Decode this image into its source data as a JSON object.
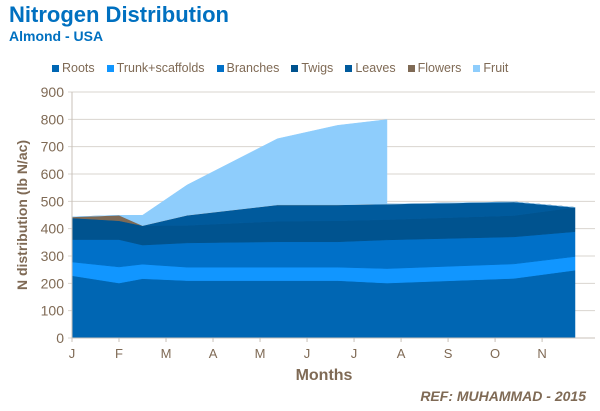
{
  "chart_data": {
    "type": "area",
    "stacked": true,
    "title": "Nitrogen Distribution",
    "subtitle": "Almond - USA",
    "xlabel": "Months",
    "ylabel": "N distribution (lb N/ac)",
    "ylim": [
      0,
      900
    ],
    "yticks": [
      0,
      100,
      200,
      300,
      400,
      500,
      600,
      700,
      800,
      900
    ],
    "xticks": [
      "J",
      "F",
      "M",
      "A",
      "M",
      "J",
      "J",
      "A",
      "S",
      "O",
      "N"
    ],
    "xlim": [
      0,
      10.7
    ],
    "grid": true,
    "legend": "top",
    "x": [
      0,
      1,
      1.5,
      2.45,
      4.37,
      5.65,
      6.7,
      6.7,
      9.4,
      10.7
    ],
    "series": [
      {
        "name": "Roots",
        "color": "#0066b3",
        "values": [
          228,
          201,
          217,
          210,
          210,
          210,
          201,
          201,
          218,
          248
        ]
      },
      {
        "name": "Trunk+scaffolds",
        "color": "#1196ff",
        "values": [
          50,
          59,
          53,
          49,
          49,
          49,
          53,
          53,
          53,
          50
        ]
      },
      {
        "name": "Branches",
        "color": "#0070c8",
        "values": [
          82,
          100,
          70,
          89,
          93,
          93,
          105,
          105,
          99,
          91
        ]
      },
      {
        "name": "Twigs",
        "color": "#00538f",
        "values": [
          79,
          69,
          71,
          64,
          75,
          77,
          74,
          74,
          78,
          89
        ]
      },
      {
        "name": "Leaves",
        "color": "#005a9c",
        "values": [
          0,
          0,
          0,
          37,
          60,
          58,
          57,
          57,
          50,
          0
        ]
      },
      {
        "name": "Flowers",
        "color": "#7f6a55",
        "values": [
          4,
          20,
          0,
          0,
          0,
          0,
          0,
          0,
          0,
          0
        ]
      },
      {
        "name": "Fruit",
        "color": "#8ecdfc",
        "values": [
          0,
          0,
          38,
          111,
          242,
          291,
          309,
          0,
          0,
          0
        ]
      }
    ]
  },
  "reference": "REF:  MUHAMMAD -  2015"
}
